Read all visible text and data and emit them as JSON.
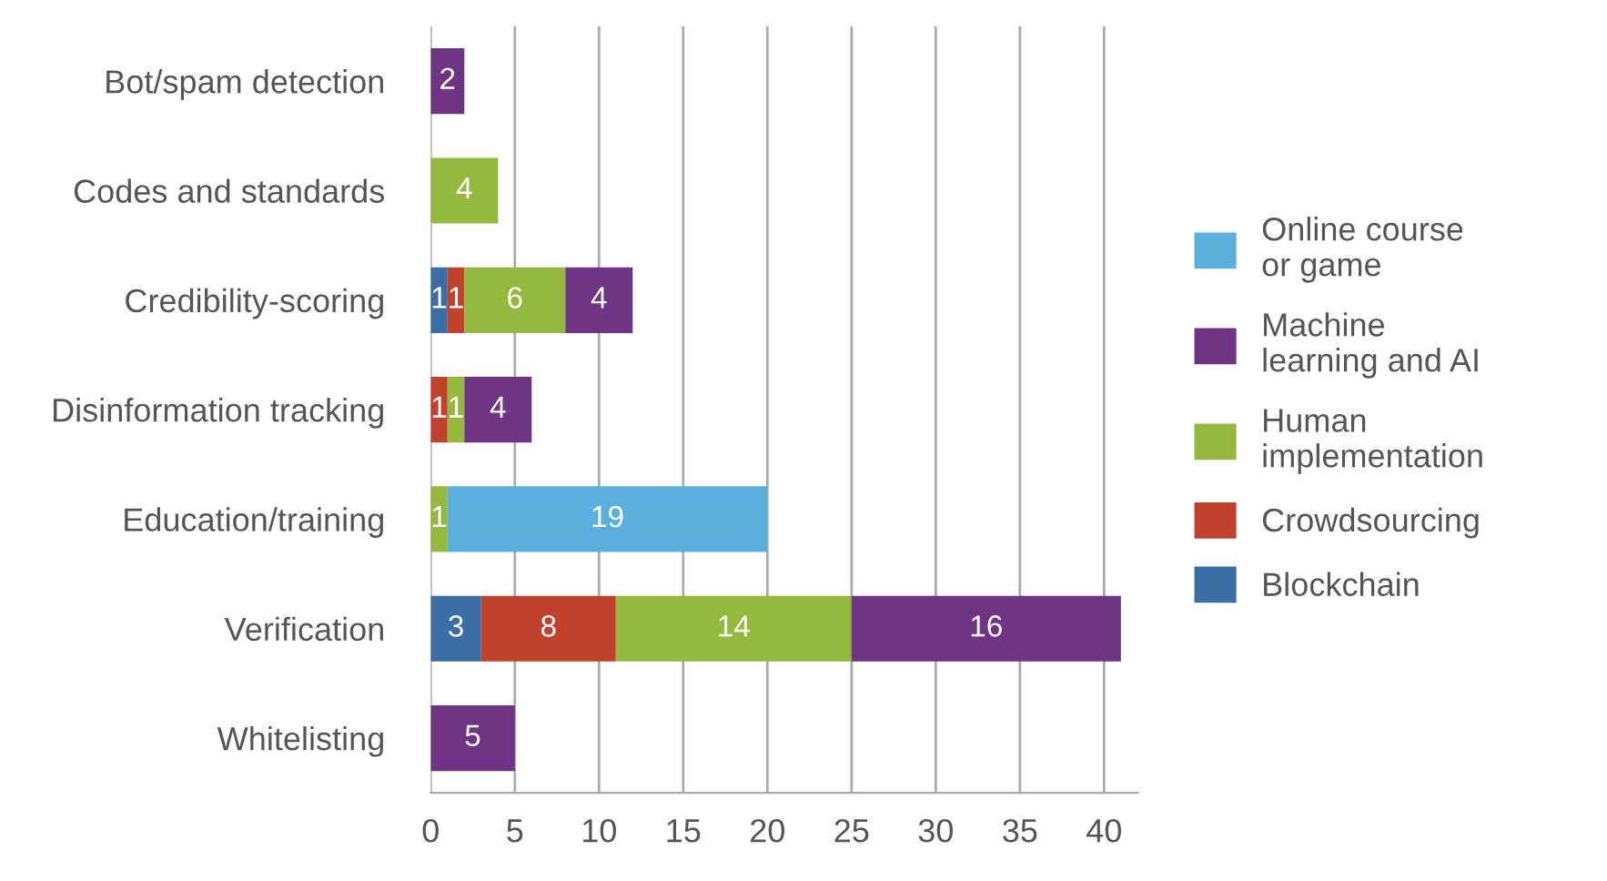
{
  "chart_data": {
    "type": "bar",
    "orientation": "horizontal",
    "stacked": true,
    "categories": [
      "Bot/spam detection",
      "Codes and standards",
      "Credibility-scoring",
      "Disinformation tracking",
      "Education/training",
      "Verification",
      "Whitelisting"
    ],
    "series": [
      {
        "name": "Blockchain",
        "color": "#3a6ea5",
        "values": [
          null,
          null,
          1,
          null,
          null,
          3,
          null
        ]
      },
      {
        "name": "Crowdsourcing",
        "color": "#c0412c",
        "values": [
          null,
          null,
          1,
          1,
          null,
          8,
          null
        ]
      },
      {
        "name": "Human\nimplementation",
        "color": "#95b93f",
        "values": [
          null,
          4,
          6,
          1,
          1,
          14,
          null
        ]
      },
      {
        "name": "Machine\nlearning and AI",
        "color": "#6d3584",
        "values": [
          2,
          null,
          4,
          4,
          null,
          16,
          5
        ]
      },
      {
        "name": "Online course\nor game",
        "color": "#5aafdc",
        "values": [
          null,
          null,
          null,
          null,
          19,
          null,
          null
        ]
      }
    ],
    "xlim": [
      0,
      42
    ],
    "xticks": [
      0,
      5,
      10,
      15,
      20,
      25,
      30,
      35,
      40
    ],
    "grid": "x",
    "legend": "right",
    "data_labels": true
  }
}
